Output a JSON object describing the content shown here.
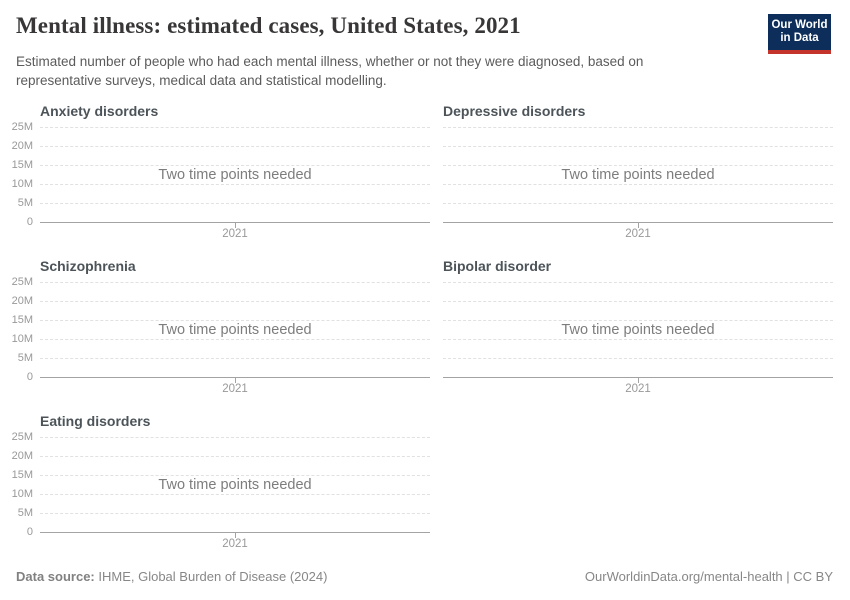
{
  "header": {
    "title": "Mental illness: estimated cases, United States, 2021",
    "subtitle": "Estimated number of people who had each mental illness, whether or not they were diagnosed, based on representative surveys, medical data and statistical modelling.",
    "logo": {
      "line1": "Our World",
      "line2": "in Data",
      "bg_color": "#0d2e5a",
      "accent_color": "#c5332d",
      "text_color": "#ffffff"
    }
  },
  "chart_data": [
    {
      "type": "line",
      "title": "Anxiety disorders",
      "empty_message": "Two time points needed",
      "series": [],
      "xticks": [
        "2021"
      ],
      "yticks": [
        "25M",
        "20M",
        "15M",
        "10M",
        "5M",
        "0"
      ],
      "ylim": [
        0,
        25000000
      ],
      "grid": true
    },
    {
      "type": "line",
      "title": "Depressive disorders",
      "empty_message": "Two time points needed",
      "series": [],
      "xticks": [
        "2021"
      ],
      "ylim": [
        0,
        25000000
      ],
      "grid": true
    },
    {
      "type": "line",
      "title": "Schizophrenia",
      "empty_message": "Two time points needed",
      "series": [],
      "xticks": [
        "2021"
      ],
      "yticks": [
        "25M",
        "20M",
        "15M",
        "10M",
        "5M",
        "0"
      ],
      "ylim": [
        0,
        25000000
      ],
      "grid": true
    },
    {
      "type": "line",
      "title": "Bipolar disorder",
      "empty_message": "Two time points needed",
      "series": [],
      "xticks": [
        "2021"
      ],
      "ylim": [
        0,
        25000000
      ],
      "grid": true
    },
    {
      "type": "line",
      "title": "Eating disorders",
      "empty_message": "Two time points needed",
      "series": [],
      "xticks": [
        "2021"
      ],
      "yticks": [
        "25M",
        "20M",
        "15M",
        "10M",
        "5M",
        "0"
      ],
      "ylim": [
        0,
        25000000
      ],
      "grid": true
    }
  ],
  "footer": {
    "source_label": "Data source:",
    "source_text": "IHME, Global Burden of Disease (2024)",
    "attribution": "OurWorldinData.org/mental-health | CC BY"
  }
}
